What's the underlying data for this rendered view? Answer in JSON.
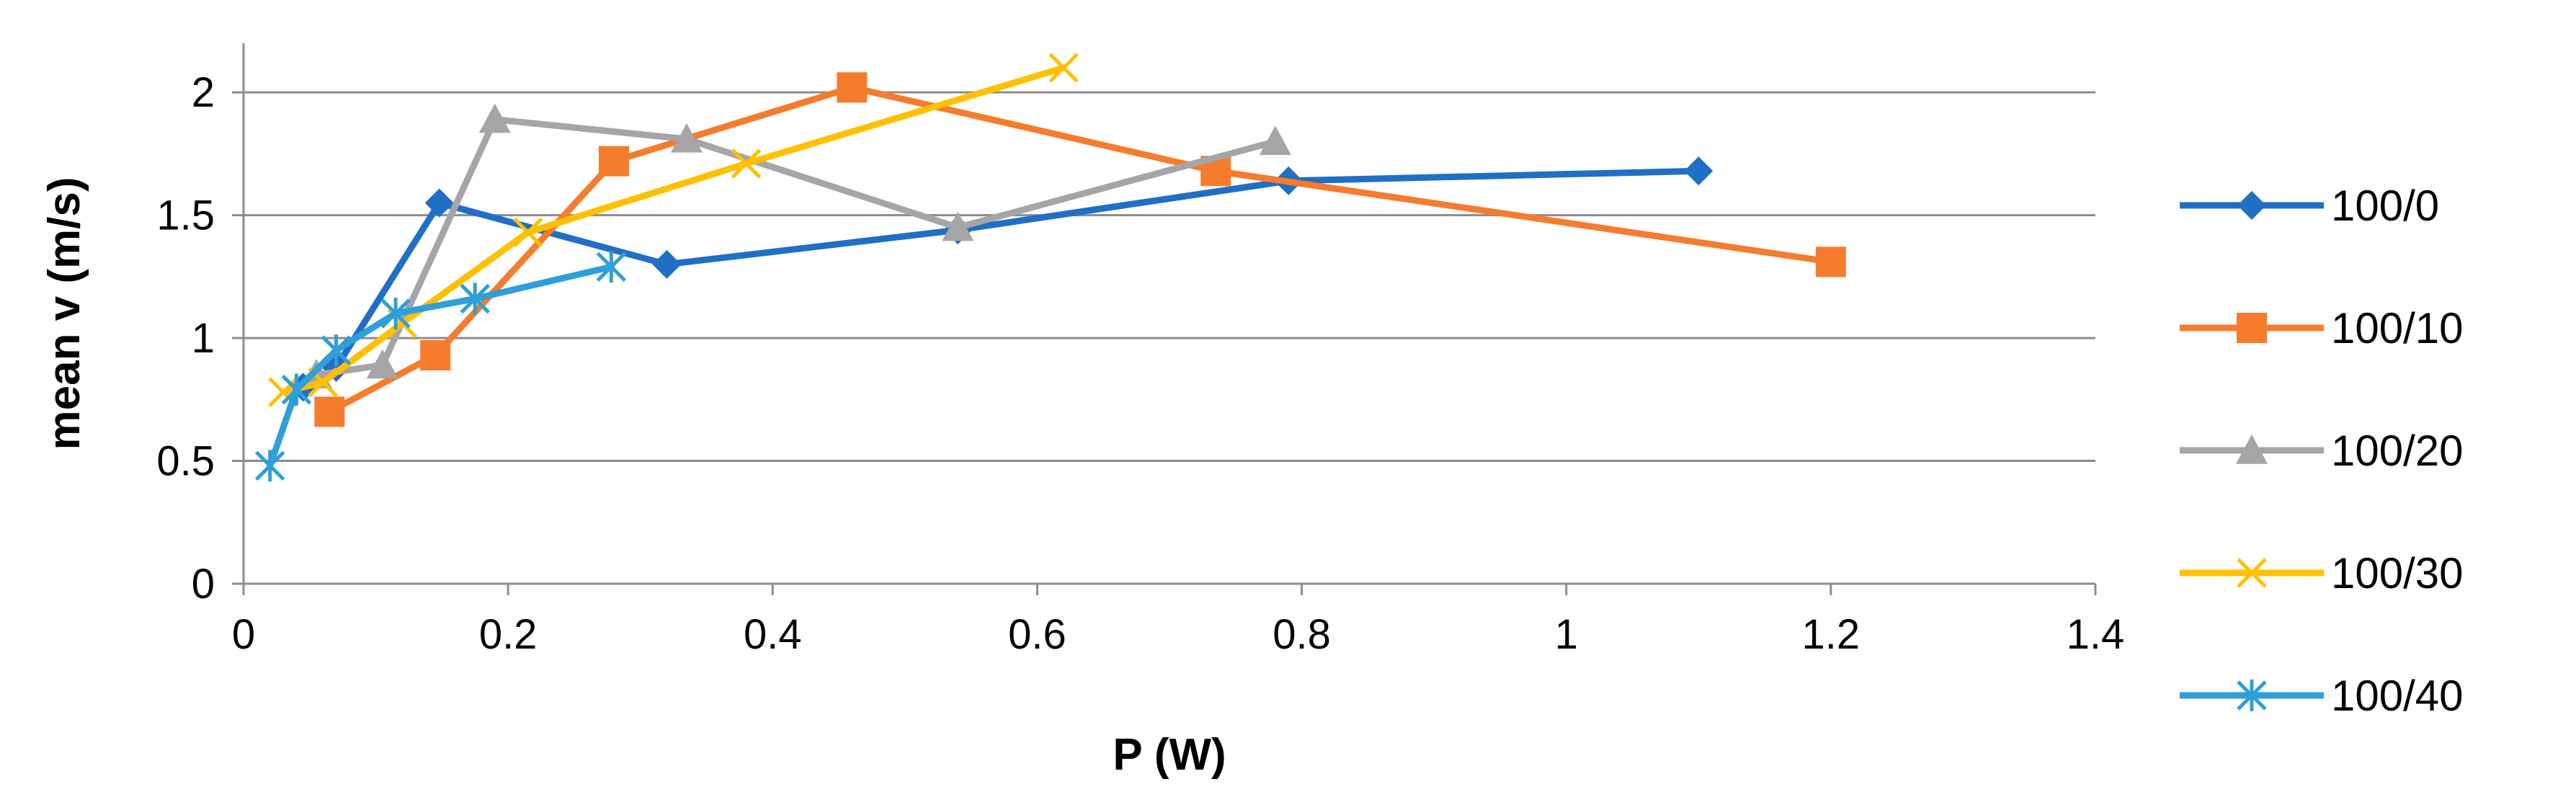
{
  "chart_data": {
    "type": "line",
    "title": "",
    "xlabel": "P (W)",
    "ylabel": "mean v (m/s)",
    "xlim": [
      0,
      1.4
    ],
    "ylim": [
      0,
      2.2
    ],
    "xticks": [
      "0",
      "0.2",
      "0.4",
      "0.6",
      "0.8",
      "1",
      "1.2",
      "1.4"
    ],
    "yticks": [
      "0",
      "0.5",
      "1",
      "1.5",
      "2"
    ],
    "grid": "horizontal",
    "legend_position": "right",
    "series": [
      {
        "name": "100/0",
        "color": "#1F6FC6",
        "marker": "diamond",
        "points": [
          [
            0.045,
            0.8
          ],
          [
            0.07,
            0.88
          ],
          [
            0.148,
            1.55
          ],
          [
            0.32,
            1.3
          ],
          [
            0.54,
            1.44
          ],
          [
            0.79,
            1.64
          ],
          [
            1.1,
            1.68
          ]
        ]
      },
      {
        "name": "100/10",
        "color": "#F47C2C",
        "marker": "square",
        "points": [
          [
            0.065,
            0.7
          ],
          [
            0.145,
            0.93
          ],
          [
            0.28,
            1.72
          ],
          [
            0.46,
            2.02
          ],
          [
            0.735,
            1.68
          ],
          [
            1.2,
            1.31
          ]
        ]
      },
      {
        "name": "100/20",
        "color": "#A5A5A5",
        "marker": "triangle",
        "points": [
          [
            0.055,
            0.85
          ],
          [
            0.105,
            0.89
          ],
          [
            0.19,
            1.89
          ],
          [
            0.335,
            1.81
          ],
          [
            0.54,
            1.45
          ],
          [
            0.78,
            1.8
          ]
        ]
      },
      {
        "name": "100/30",
        "color": "#FFC000",
        "marker": "x",
        "points": [
          [
            0.03,
            0.78
          ],
          [
            0.06,
            0.82
          ],
          [
            0.12,
            1.06
          ],
          [
            0.215,
            1.43
          ],
          [
            0.38,
            1.71
          ],
          [
            0.62,
            2.1
          ]
        ]
      },
      {
        "name": "100/40",
        "color": "#2E9FD8",
        "marker": "star",
        "points": [
          [
            0.02,
            0.48
          ],
          [
            0.04,
            0.79
          ],
          [
            0.07,
            0.95
          ],
          [
            0.115,
            1.1
          ],
          [
            0.175,
            1.16
          ],
          [
            0.278,
            1.29
          ]
        ]
      }
    ]
  }
}
